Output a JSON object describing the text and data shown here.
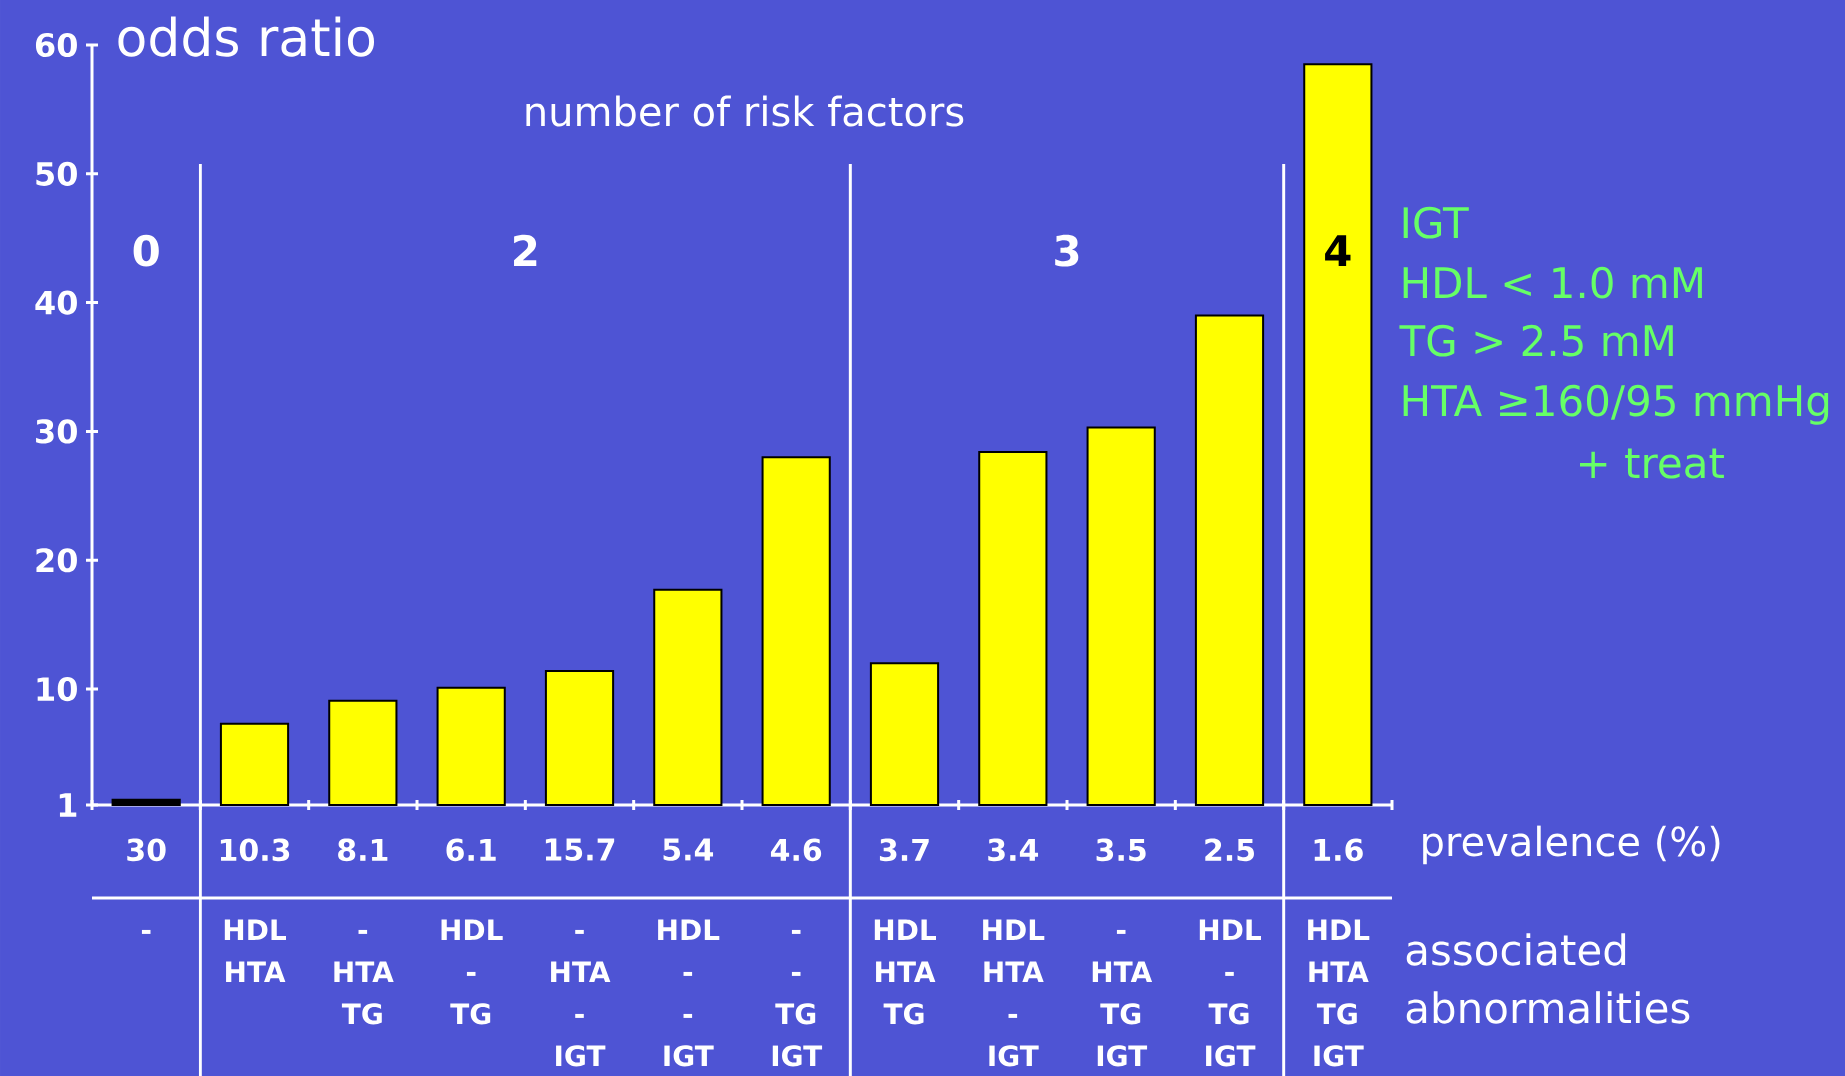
{
  "chart_data": {
    "type": "bar",
    "title": "number of risk factors",
    "ylabel": "odds ratio",
    "xlabel": "prevalence (%)",
    "categories": [
      "30",
      "10.3",
      "8.1",
      "6.1",
      "15.7",
      "5.4",
      "4.6",
      "3.7",
      "3.4",
      "3.5",
      "2.5",
      "1.6"
    ],
    "values": [
      1.4,
      7.3,
      9.1,
      10.1,
      11.4,
      17.7,
      28.0,
      12.0,
      28.4,
      30.3,
      39.0,
      58.5
    ],
    "colors": [
      "#000000",
      "#ffff00",
      "#ffff00",
      "#ffff00",
      "#ffff00",
      "#ffff00",
      "#ffff00",
      "#ffff00",
      "#ffff00",
      "#ffff00",
      "#ffff00",
      "#ffff00"
    ],
    "ylim": [
      1,
      60
    ],
    "yticks": [
      1,
      10,
      20,
      30,
      40,
      50,
      60
    ],
    "annotations": [
      "0",
      "2",
      "3",
      "4",
      "IGT",
      "HDL < 1.0 mM",
      "TG > 2.5 mM",
      "HTA ≥160/95 mmHg",
      "+ treat",
      "associated abnormalities",
      "-",
      "HDL",
      "HTA",
      "-",
      "HTA",
      "TG",
      "HDL",
      "-",
      "TG",
      "-",
      "HTA",
      "-",
      "IGT",
      "HDL",
      "-",
      "-",
      "IGT",
      "-",
      "-",
      "TG",
      "IGT",
      "HDL",
      "HTA",
      "TG",
      "HDL",
      "HTA",
      "-",
      "IGT",
      "-",
      "HTA",
      "TG",
      "IGT",
      "HDL",
      "-",
      "TG",
      "IGT",
      "HDL",
      "HTA",
      "TG",
      "IGT"
    ]
  }
}
